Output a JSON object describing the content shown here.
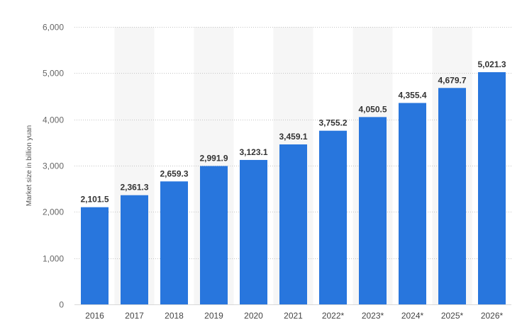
{
  "chart_data": {
    "type": "bar",
    "title": "",
    "xlabel": "",
    "ylabel": "Market size in billion yuan",
    "categories": [
      "2016",
      "2017",
      "2018",
      "2019",
      "2020",
      "2021",
      "2022*",
      "2023*",
      "2024*",
      "2025*",
      "2026*"
    ],
    "values": [
      2101.5,
      2361.3,
      2659.3,
      2991.9,
      3123.1,
      3459.1,
      3755.2,
      4050.5,
      4355.4,
      4679.7,
      5021.3
    ],
    "value_labels": [
      "2,101.5",
      "2,361.3",
      "2,659.3",
      "2,991.9",
      "3,123.1",
      "3,459.1",
      "3,755.2",
      "4,050.5",
      "4,355.4",
      "4,679.7",
      "5,021.3"
    ],
    "ylim": [
      0,
      6000
    ],
    "yticks": [
      0,
      1000,
      2000,
      3000,
      4000,
      5000,
      6000
    ],
    "ytick_labels": [
      "0",
      "1,000",
      "2,000",
      "3,000",
      "4,000",
      "5,000",
      "6,000"
    ],
    "grid": true,
    "legend": "none",
    "colors": {
      "bar": "#2876dd",
      "band": "#f6f6f6",
      "grid": "#c4c4c4"
    }
  }
}
